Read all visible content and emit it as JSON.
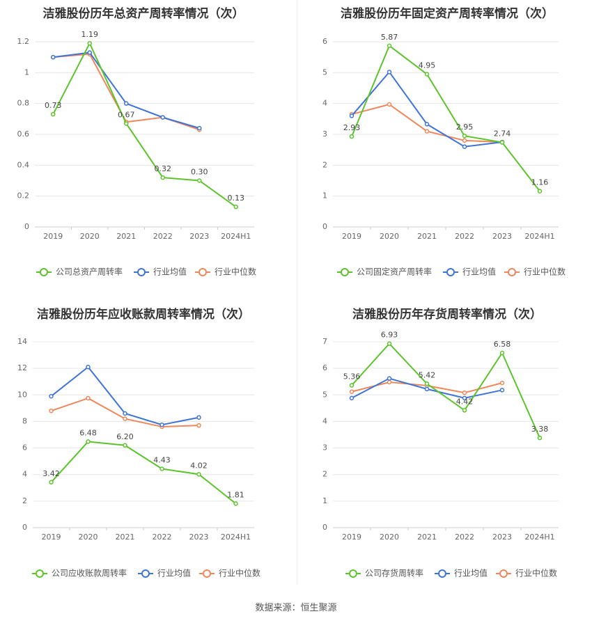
{
  "source_text": "数据来源：恒生聚源",
  "colors": {
    "company": "#5cc42b",
    "avg": "#3e74d8",
    "median": "#f0875a",
    "grid": "#e6e6e6",
    "tick": "#666666",
    "title": "#333333"
  },
  "chart_data": [
    {
      "type": "line",
      "title": "洁雅股份历年总资产周转率情况（次）",
      "categories": [
        "2019",
        "2020",
        "2021",
        "2022",
        "2023",
        "2024H1"
      ],
      "ylim": [
        0,
        1.2
      ],
      "yticks": [
        "0",
        "0.2",
        "0.4",
        "0.6",
        "0.8",
        "1",
        "1.2"
      ],
      "grid": true,
      "legend": "bottom",
      "series": [
        {
          "name": "公司总资产周转率",
          "values": [
            0.73,
            1.19,
            0.67,
            0.32,
            0.3,
            0.13
          ],
          "labels": [
            "0.73",
            "1.19",
            "0.67",
            "0.32",
            "0.30",
            "0.13"
          ]
        },
        {
          "name": "行业均值",
          "values": [
            1.1,
            1.13,
            0.8,
            0.71,
            0.64,
            null
          ]
        },
        {
          "name": "行业中位数",
          "values": [
            1.1,
            1.12,
            0.68,
            0.71,
            0.63,
            null
          ]
        }
      ]
    },
    {
      "type": "line",
      "title": "洁雅股份历年固定资产周转率情况（次）",
      "categories": [
        "2019",
        "2020",
        "2021",
        "2022",
        "2023",
        "2024H1"
      ],
      "ylim": [
        0,
        6
      ],
      "yticks": [
        "0",
        "1",
        "2",
        "3",
        "4",
        "5",
        "6"
      ],
      "grid": true,
      "legend": "bottom",
      "series": [
        {
          "name": "公司固定资产周转率",
          "values": [
            2.93,
            5.87,
            4.95,
            2.95,
            2.74,
            1.16
          ],
          "labels": [
            "2.93",
            "5.87",
            "4.95",
            "2.95",
            "2.74",
            "1.16"
          ]
        },
        {
          "name": "行业均值",
          "values": [
            3.6,
            5.02,
            3.33,
            2.6,
            2.75,
            null
          ]
        },
        {
          "name": "行业中位数",
          "values": [
            3.65,
            3.97,
            3.1,
            2.8,
            2.75,
            null
          ]
        }
      ]
    },
    {
      "type": "line",
      "title": "洁雅股份历年应收账款周转率情况（次）",
      "categories": [
        "2019",
        "2020",
        "2021",
        "2022",
        "2023",
        "2024H1"
      ],
      "ylim": [
        0,
        14
      ],
      "yticks": [
        "0",
        "2",
        "4",
        "6",
        "8",
        "10",
        "12",
        "14"
      ],
      "grid": true,
      "legend": "bottom",
      "series": [
        {
          "name": "公司应收账款周转率",
          "values": [
            3.42,
            6.48,
            6.2,
            4.43,
            4.02,
            1.81
          ],
          "labels": [
            "3.42",
            "6.48",
            "6.20",
            "4.43",
            "4.02",
            "1.81"
          ]
        },
        {
          "name": "行业均值",
          "values": [
            9.9,
            12.1,
            8.6,
            7.75,
            8.3,
            null
          ]
        },
        {
          "name": "行业中位数",
          "values": [
            8.8,
            9.75,
            8.2,
            7.6,
            7.7,
            null
          ]
        }
      ]
    },
    {
      "type": "line",
      "title": "洁雅股份历年存货周转率情况（次）",
      "categories": [
        "2019",
        "2020",
        "2021",
        "2022",
        "2023",
        "2024H1"
      ],
      "ylim": [
        0,
        7
      ],
      "yticks": [
        "0",
        "1",
        "2",
        "3",
        "4",
        "5",
        "6",
        "7"
      ],
      "grid": true,
      "legend": "bottom",
      "series": [
        {
          "name": "公司存货周转率",
          "values": [
            5.36,
            6.93,
            5.42,
            4.42,
            6.58,
            3.38
          ],
          "labels": [
            "5.36",
            "6.93",
            "5.42",
            "4.42",
            "6.58",
            "3.38"
          ]
        },
        {
          "name": "行业均值",
          "values": [
            4.88,
            5.62,
            5.22,
            4.88,
            5.18,
            null
          ]
        },
        {
          "name": "行业中位数",
          "values": [
            5.12,
            5.48,
            5.35,
            5.08,
            5.45,
            null
          ]
        }
      ]
    }
  ]
}
